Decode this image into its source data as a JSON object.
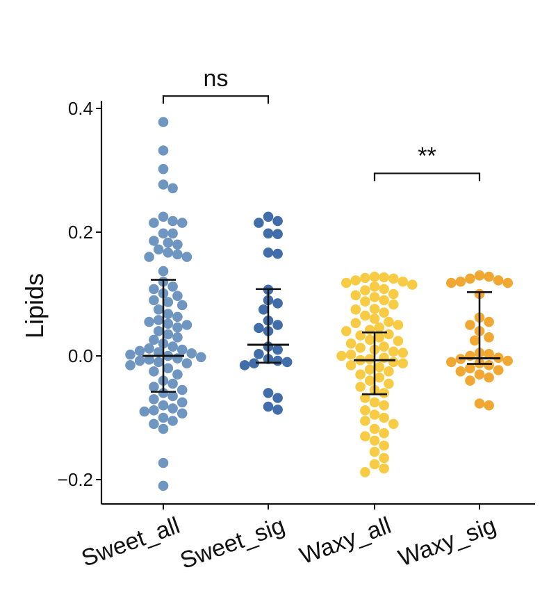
{
  "chart_data": {
    "type": "scatter",
    "subtype": "beeswarm-with-error-bars",
    "ylabel": "Lipids",
    "xlabel": "",
    "ylim": [
      -0.24,
      0.41
    ],
    "yticks": [
      -0.2,
      0.0,
      0.2,
      0.4
    ],
    "ytick_labels": [
      "−0.2",
      "0.0",
      "0.2",
      "0.4"
    ],
    "grid": false,
    "legend": "none",
    "categories": [
      "Sweet_all",
      "Sweet_sig",
      "Waxy_all",
      "Waxy_sig"
    ],
    "colors": [
      "#6a93bf",
      "#3b69a6",
      "#f8c93e",
      "#efa52c"
    ],
    "summary": [
      {
        "name": "Sweet_all",
        "center": 0.0,
        "lower": -0.058,
        "upper": 0.123
      },
      {
        "name": "Sweet_sig",
        "center": 0.018,
        "lower": -0.011,
        "upper": 0.108
      },
      {
        "name": "Waxy_all",
        "center": -0.007,
        "lower": -0.062,
        "upper": 0.038
      },
      {
        "name": "Waxy_sig",
        "center": -0.004,
        "lower": -0.013,
        "upper": 0.103
      }
    ],
    "series": [
      {
        "name": "Sweet_all",
        "values": [
          0.378,
          0.332,
          0.302,
          0.277,
          0.271,
          0.225,
          0.218,
          0.215,
          0.215,
          0.198,
          0.198,
          0.186,
          0.183,
          0.18,
          0.172,
          0.167,
          0.164,
          0.16,
          0.16,
          0.137,
          0.12,
          0.112,
          0.108,
          0.101,
          0.097,
          0.09,
          0.087,
          0.082,
          0.075,
          0.068,
          0.063,
          0.058,
          0.055,
          0.052,
          0.05,
          0.046,
          0.04,
          0.035,
          0.03,
          0.026,
          0.02,
          0.015,
          0.012,
          0.01,
          0.008,
          0.006,
          0.004,
          0.002,
          0.0,
          -0.002,
          -0.004,
          -0.006,
          -0.008,
          -0.01,
          -0.012,
          -0.015,
          -0.02,
          -0.025,
          -0.03,
          -0.04,
          -0.045,
          -0.05,
          -0.055,
          -0.06,
          -0.065,
          -0.07,
          -0.075,
          -0.08,
          -0.085,
          -0.088,
          -0.09,
          -0.093,
          -0.1,
          -0.105,
          -0.11,
          -0.118,
          -0.173,
          -0.21
        ]
      },
      {
        "name": "Sweet_sig",
        "values": [
          0.225,
          0.218,
          0.215,
          0.198,
          0.197,
          0.167,
          0.165,
          0.107,
          0.09,
          0.085,
          0.075,
          0.057,
          0.05,
          0.045,
          0.04,
          0.015,
          0.01,
          0.003,
          -0.005,
          -0.008,
          -0.01,
          -0.012,
          -0.015,
          -0.06,
          -0.068,
          -0.082,
          -0.087
        ]
      },
      {
        "name": "Waxy_all",
        "values": [
          0.128,
          0.127,
          0.126,
          0.125,
          0.122,
          0.12,
          0.118,
          0.115,
          0.112,
          0.108,
          0.106,
          0.1,
          0.098,
          0.095,
          0.09,
          0.088,
          0.083,
          0.076,
          0.075,
          0.07,
          0.065,
          0.06,
          0.055,
          0.053,
          0.05,
          0.046,
          0.042,
          0.04,
          0.035,
          0.033,
          0.03,
          0.026,
          0.024,
          0.02,
          0.015,
          0.013,
          0.01,
          0.007,
          0.005,
          0.002,
          0.0,
          -0.003,
          -0.005,
          -0.007,
          -0.01,
          -0.012,
          -0.015,
          -0.018,
          -0.022,
          -0.025,
          -0.03,
          -0.035,
          -0.04,
          -0.045,
          -0.05,
          -0.055,
          -0.06,
          -0.068,
          -0.075,
          -0.08,
          -0.088,
          -0.095,
          -0.1,
          -0.105,
          -0.11,
          -0.118,
          -0.125,
          -0.13,
          -0.137,
          -0.145,
          -0.155,
          -0.165,
          -0.175,
          -0.182,
          -0.188
        ]
      },
      {
        "name": "Waxy_sig",
        "values": [
          0.13,
          0.128,
          0.125,
          0.122,
          0.12,
          0.118,
          0.118,
          0.1,
          0.062,
          0.055,
          0.05,
          0.04,
          0.03,
          0.025,
          0.005,
          0.003,
          0.0,
          -0.003,
          -0.005,
          -0.008,
          -0.01,
          -0.012,
          -0.015,
          -0.02,
          -0.023,
          -0.025,
          -0.03,
          -0.035,
          -0.04,
          -0.077,
          -0.08
        ]
      }
    ],
    "comparisons": [
      {
        "groups": [
          "Sweet_all",
          "Sweet_sig"
        ],
        "label": "ns",
        "y": 0.42
      },
      {
        "groups": [
          "Waxy_all",
          "Waxy_sig"
        ],
        "label": "**",
        "y": 0.295
      }
    ]
  }
}
